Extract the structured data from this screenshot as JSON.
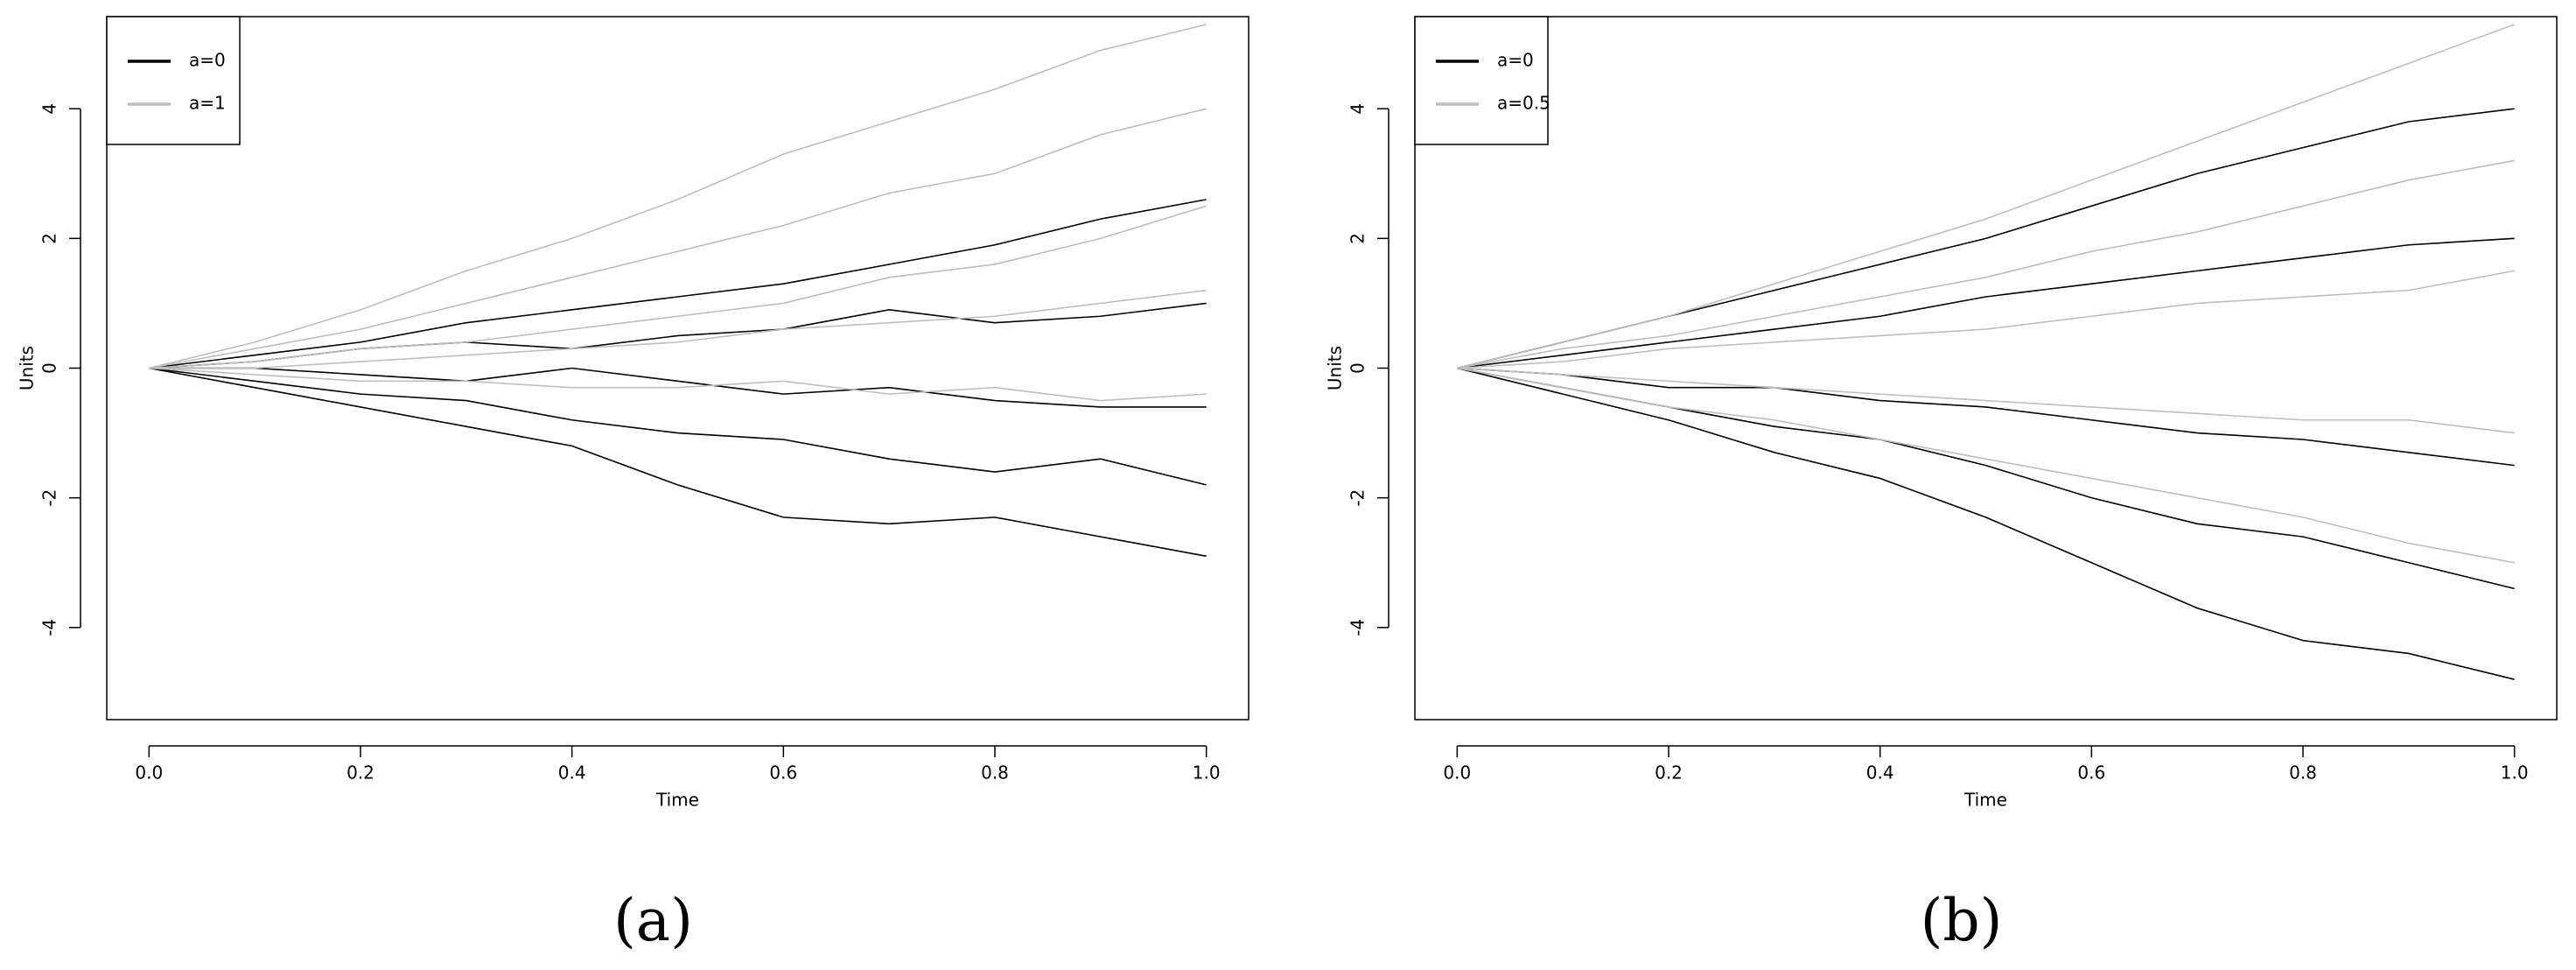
{
  "chart_data": [
    {
      "type": "line",
      "caption": "(a)",
      "xlabel": "Time",
      "ylabel": "Units",
      "legend": "topleft",
      "x": [
        0,
        0.1,
        0.2,
        0.3,
        0.4,
        0.5,
        0.6,
        0.7,
        0.8,
        0.9,
        1
      ],
      "xlim": [
        -0.04,
        1.04
      ],
      "ylim": [
        -5.42,
        5.42
      ],
      "xticks": [
        {
          "value": 0,
          "label": "0.0"
        },
        0.2,
        0.4,
        0.6,
        0.8,
        {
          "value": 1,
          "label": "1.0"
        }
      ],
      "yticks": [
        -4,
        -2,
        0,
        2,
        4
      ],
      "series": [
        {
          "name": "a=0",
          "color": "#000000",
          "values": [
            [
              0,
              -0.3,
              -0.6,
              -0.9,
              -1.2,
              -1.8,
              -2.3,
              -2.4,
              -2.3,
              -2.6,
              -2.9
            ],
            [
              0,
              -0.2,
              -0.4,
              -0.5,
              -0.8,
              -1.0,
              -1.1,
              -1.4,
              -1.6,
              -1.4,
              -1.8
            ],
            [
              0,
              0,
              -0.1,
              -0.2,
              0,
              -0.2,
              -0.4,
              -0.3,
              -0.5,
              -0.6,
              -0.6
            ],
            [
              0,
              0.1,
              0.3,
              0.4,
              0.3,
              0.5,
              0.6,
              0.9,
              0.7,
              0.8,
              1.0
            ],
            [
              0,
              0.2,
              0.4,
              0.7,
              0.9,
              1.1,
              1.3,
              1.6,
              1.9,
              2.3,
              2.6
            ]
          ]
        },
        {
          "name": "a=1",
          "color": "#bebebe",
          "values": [
            [
              0,
              0.4,
              0.9,
              1.5,
              2.0,
              2.6,
              3.3,
              3.8,
              4.3,
              4.9,
              5.3
            ],
            [
              0,
              0.3,
              0.6,
              1.0,
              1.4,
              1.8,
              2.2,
              2.7,
              3.0,
              3.6,
              4.0
            ],
            [
              0,
              0.1,
              0.3,
              0.4,
              0.6,
              0.8,
              1.0,
              1.4,
              1.6,
              2.0,
              2.5
            ],
            [
              0,
              0,
              0.1,
              0.2,
              0.3,
              0.4,
              0.6,
              0.7,
              0.8,
              1.0,
              1.2
            ],
            [
              0,
              -0.1,
              -0.2,
              -0.2,
              -0.3,
              -0.3,
              -0.2,
              -0.4,
              -0.3,
              -0.5,
              -0.4
            ]
          ]
        }
      ]
    },
    {
      "type": "line",
      "caption": "(b)",
      "xlabel": "Time",
      "ylabel": "Units",
      "legend": "topleft",
      "x": [
        0,
        0.1,
        0.2,
        0.3,
        0.4,
        0.5,
        0.6,
        0.7,
        0.8,
        0.9,
        1
      ],
      "xlim": [
        -0.04,
        1.04
      ],
      "ylim": [
        -5.42,
        5.42
      ],
      "xticks": [
        {
          "value": 0,
          "label": "0.0"
        },
        0.2,
        0.4,
        0.6,
        0.8,
        {
          "value": 1,
          "label": "1.0"
        }
      ],
      "yticks": [
        -4,
        -2,
        0,
        2,
        4
      ],
      "series": [
        {
          "name": "a=0",
          "color": "#000000",
          "values": [
            [
              0,
              -0.4,
              -0.8,
              -1.3,
              -1.7,
              -2.3,
              -3.0,
              -3.7,
              -4.2,
              -4.4,
              -4.8
            ],
            [
              0,
              -0.3,
              -0.6,
              -0.9,
              -1.1,
              -1.5,
              -2.0,
              -2.4,
              -2.6,
              -3.0,
              -3.4
            ],
            [
              0,
              -0.1,
              -0.3,
              -0.3,
              -0.5,
              -0.6,
              -0.8,
              -1.0,
              -1.1,
              -1.3,
              -1.5
            ],
            [
              0,
              0.2,
              0.4,
              0.6,
              0.8,
              1.1,
              1.3,
              1.5,
              1.7,
              1.9,
              2.0
            ],
            [
              0,
              0.4,
              0.8,
              1.2,
              1.6,
              2.0,
              2.5,
              3.0,
              3.4,
              3.8,
              4.0
            ]
          ]
        },
        {
          "name": "a=0.5",
          "color": "#bebebe",
          "values": [
            [
              0,
              0.4,
              0.8,
              1.3,
              1.8,
              2.3,
              2.9,
              3.5,
              4.1,
              4.7,
              5.3
            ],
            [
              0,
              0.3,
              0.5,
              0.8,
              1.1,
              1.4,
              1.8,
              2.1,
              2.5,
              2.9,
              3.2
            ],
            [
              0,
              0.1,
              0.3,
              0.4,
              0.5,
              0.6,
              0.8,
              1.0,
              1.1,
              1.2,
              1.5
            ],
            [
              0,
              -0.1,
              -0.2,
              -0.3,
              -0.4,
              -0.5,
              -0.6,
              -0.7,
              -0.8,
              -0.8,
              -1.0
            ],
            [
              0,
              -0.3,
              -0.6,
              -0.8,
              -1.1,
              -1.4,
              -1.7,
              -2.0,
              -2.3,
              -2.7,
              -3.0
            ]
          ]
        }
      ]
    }
  ]
}
